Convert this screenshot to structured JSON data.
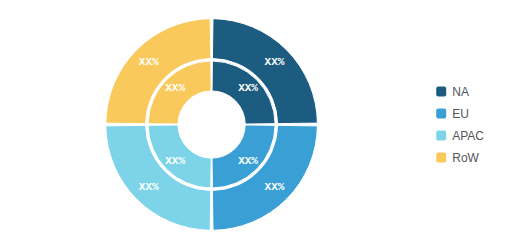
{
  "chart_data": {
    "type": "pie",
    "categories": [
      "NA",
      "EU",
      "APAC",
      "RoW"
    ],
    "series": [
      {
        "values": [
          24.583333333333332,
          24.583333333333332,
          24.583333333333332,
          24.583333333333332
        ],
        "value_labels": [
          "XX%",
          "XX%",
          "XX%",
          "XX%"
        ]
      },
      {
        "values": [
          24.583333333333332,
          24.583333333333332,
          24.583333333333332,
          24.583333333333332
        ],
        "value_labels": [
          "XX%",
          "XX%",
          "XX%",
          "XX%"
        ]
      }
    ],
    "colors": [
      "#1b5c80",
      "#3a9fd4",
      "#7dd4e8",
      "#f9c95c"
    ],
    "data_labels": true,
    "legend": "right"
  }
}
